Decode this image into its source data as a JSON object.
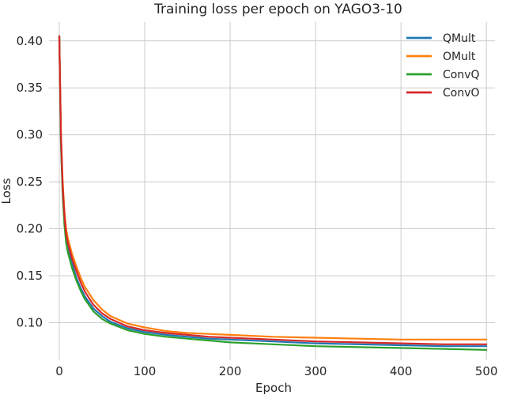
{
  "chart_data": {
    "type": "line",
    "title": "Training loss per epoch on YAGO3-10",
    "xlabel": "Epoch",
    "ylabel": "Loss",
    "xlim": [
      -12,
      510
    ],
    "ylim": [
      0.06,
      0.42
    ],
    "xticks": [
      0,
      100,
      200,
      300,
      400,
      500
    ],
    "yticks": [
      0.1,
      0.15,
      0.2,
      0.25,
      0.3,
      0.35,
      0.4
    ],
    "ytick_labels": [
      "0.10",
      "0.15",
      "0.20",
      "0.25",
      "0.30",
      "0.35",
      "0.40"
    ],
    "grid": true,
    "legend": "top-right",
    "x": [
      0,
      2,
      4,
      6,
      8,
      10,
      15,
      20,
      25,
      30,
      40,
      50,
      60,
      80,
      100,
      125,
      150,
      175,
      200,
      250,
      300,
      350,
      400,
      450,
      500
    ],
    "series": [
      {
        "name": "QMult",
        "color": "#1f77b4",
        "values": [
          0.405,
          0.29,
          0.24,
          0.21,
          0.19,
          0.18,
          0.163,
          0.148,
          0.137,
          0.128,
          0.115,
          0.107,
          0.101,
          0.094,
          0.09,
          0.087,
          0.085,
          0.083,
          0.082,
          0.08,
          0.078,
          0.077,
          0.076,
          0.075,
          0.075
        ]
      },
      {
        "name": "OMult",
        "color": "#ff7f0e",
        "values": [
          0.405,
          0.3,
          0.25,
          0.22,
          0.2,
          0.19,
          0.173,
          0.16,
          0.148,
          0.138,
          0.124,
          0.114,
          0.107,
          0.099,
          0.095,
          0.091,
          0.089,
          0.088,
          0.087,
          0.085,
          0.084,
          0.083,
          0.082,
          0.082,
          0.082
        ]
      },
      {
        "name": "ConvQ",
        "color": "#2ca02c",
        "values": [
          0.405,
          0.29,
          0.235,
          0.205,
          0.185,
          0.175,
          0.158,
          0.145,
          0.134,
          0.125,
          0.112,
          0.104,
          0.099,
          0.092,
          0.088,
          0.085,
          0.083,
          0.081,
          0.079,
          0.077,
          0.075,
          0.074,
          0.073,
          0.072,
          0.071
        ]
      },
      {
        "name": "ConvO",
        "color": "#d62728",
        "values": [
          0.405,
          0.3,
          0.245,
          0.215,
          0.195,
          0.185,
          0.168,
          0.155,
          0.143,
          0.133,
          0.119,
          0.11,
          0.104,
          0.096,
          0.092,
          0.089,
          0.087,
          0.085,
          0.084,
          0.082,
          0.08,
          0.079,
          0.078,
          0.077,
          0.077
        ]
      }
    ]
  }
}
